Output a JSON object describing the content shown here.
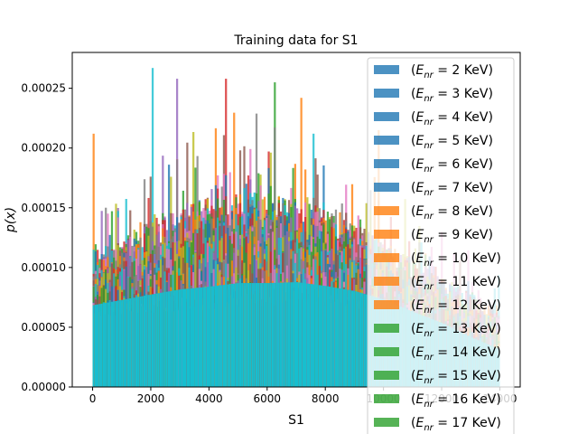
{
  "chart_data": {
    "type": "bar",
    "title": "Training data for S1",
    "xlabel": "S1",
    "ylabel": "p(x)",
    "xlim": [
      -700,
      14700
    ],
    "ylim": [
      0,
      0.00028
    ],
    "xticks": [
      "0",
      "2000",
      "4000",
      "6000",
      "8000",
      "10000",
      "12000",
      "14000"
    ],
    "xtick_values": [
      0,
      2000,
      4000,
      6000,
      8000,
      10000,
      12000,
      14000
    ],
    "yticks": [
      "0.00000",
      "0.00005",
      "0.00010",
      "0.00015",
      "0.00020",
      "0.00025"
    ],
    "ytick_values": [
      0,
      5e-05,
      0.0001,
      0.00015,
      0.0002,
      0.00025
    ],
    "bins": {
      "start": 0,
      "end": 14000,
      "width": 70
    },
    "envelope": {
      "x": [
        0,
        1000,
        2000,
        3000,
        4000,
        5000,
        6000,
        7000,
        8000,
        9000,
        10000,
        11000,
        12000,
        13000,
        14000
      ],
      "baseline": [
        8.5e-05,
        9.5e-05,
        0.000105,
        0.000112,
        0.000117,
        0.00012,
        0.00012,
        0.000118,
        0.000112,
        0.000105,
        9.5e-05,
        8.2e-05,
        7e-05,
        5.8e-05,
        4.5e-05
      ],
      "spread": [
        3e-05,
        4e-05,
        5e-05,
        5.5e-05,
        6e-05,
        6e-05,
        6e-05,
        5.5e-05,
        5e-05,
        4.5e-05,
        4e-05,
        3.5e-05,
        3e-05,
        3e-05,
        2.5e-05
      ]
    },
    "peaks": [
      {
        "x": 0,
        "y": 0.000212
      },
      {
        "x": 2000,
        "y": 0.000267
      },
      {
        "x": 2900,
        "y": 0.000258
      },
      {
        "x": 4550,
        "y": 0.000258
      },
      {
        "x": 6250,
        "y": 0.000255
      },
      {
        "x": 7150,
        "y": 0.000242
      },
      {
        "x": 9800,
        "y": 0.000215
      }
    ],
    "series_colors": [
      "#1f77b4",
      "#ff7f0e",
      "#2ca02c",
      "#d62728",
      "#9467bd",
      "#8c564b",
      "#e377c2",
      "#7f7f7f",
      "#bcbd22",
      "#17becf"
    ],
    "legend_position": "upper right",
    "legend": [
      {
        "label": "(E_nr = 2 KeV)",
        "main": "E",
        "sub": "nr",
        "rest": " = 2 KeV)",
        "color": "#1f77b4"
      },
      {
        "label": "(E_nr = 3 KeV)",
        "main": "E",
        "sub": "nr",
        "rest": " = 3 KeV)",
        "color": "#1f77b4"
      },
      {
        "label": "(E_nr = 4 KeV)",
        "main": "E",
        "sub": "nr",
        "rest": " = 4 KeV)",
        "color": "#1f77b4"
      },
      {
        "label": "(E_nr = 5 KeV)",
        "main": "E",
        "sub": "nr",
        "rest": " = 5 KeV)",
        "color": "#1f77b4"
      },
      {
        "label": "(E_nr = 6 KeV)",
        "main": "E",
        "sub": "nr",
        "rest": " = 6 KeV)",
        "color": "#1f77b4"
      },
      {
        "label": "(E_nr = 7 KeV)",
        "main": "E",
        "sub": "nr",
        "rest": " = 7 KeV)",
        "color": "#1f77b4"
      },
      {
        "label": "(E_nr = 8 KeV)",
        "main": "E",
        "sub": "nr",
        "rest": " = 8 KeV)",
        "color": "#ff7f0e"
      },
      {
        "label": "(E_nr = 9 KeV)",
        "main": "E",
        "sub": "nr",
        "rest": " = 9 KeV)",
        "color": "#ff7f0e"
      },
      {
        "label": "(E_nr = 10 KeV)",
        "main": "E",
        "sub": "nr",
        "rest": " = 10 KeV)",
        "color": "#ff7f0e"
      },
      {
        "label": "(E_nr = 11 KeV)",
        "main": "E",
        "sub": "nr",
        "rest": " = 11 KeV)",
        "color": "#ff7f0e"
      },
      {
        "label": "(E_nr = 12 KeV)",
        "main": "E",
        "sub": "nr",
        "rest": " = 12 KeV)",
        "color": "#ff7f0e"
      },
      {
        "label": "(E_nr = 13 KeV)",
        "main": "E",
        "sub": "nr",
        "rest": " = 13 KeV)",
        "color": "#2ca02c"
      },
      {
        "label": "(E_nr = 14 KeV)",
        "main": "E",
        "sub": "nr",
        "rest": " = 14 KeV)",
        "color": "#2ca02c"
      },
      {
        "label": "(E_nr = 15 KeV)",
        "main": "E",
        "sub": "nr",
        "rest": " = 15 KeV)",
        "color": "#2ca02c"
      },
      {
        "label": "(E_nr = 16 KeV)",
        "main": "E",
        "sub": "nr",
        "rest": " = 16 KeV)",
        "color": "#2ca02c"
      },
      {
        "label": "(E_nr = 17 KeV)",
        "main": "E",
        "sub": "nr",
        "rest": " = 17 KeV)",
        "color": "#2ca02c"
      }
    ]
  }
}
